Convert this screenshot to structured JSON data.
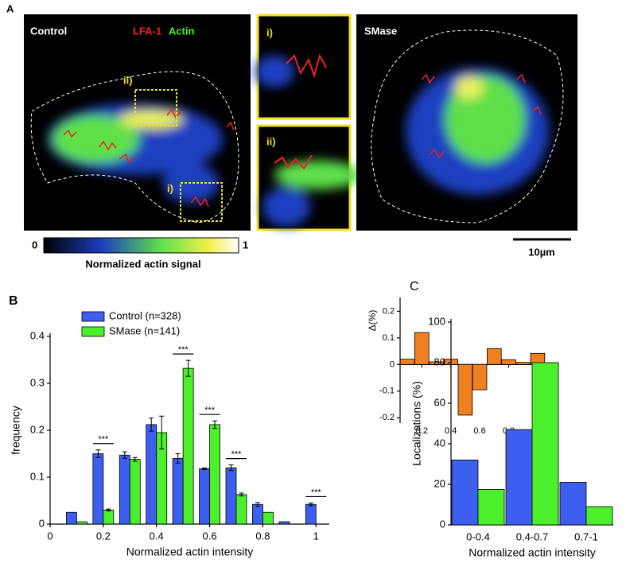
{
  "panel_a": {
    "label": "A",
    "control": "Control",
    "lfa1": "LFA-1",
    "actin": "Actin",
    "inset_i": "i)",
    "inset_ii": "ii)",
    "roi_i": "i)",
    "roi_ii": "ii)",
    "smase": "SMase",
    "colorbar_min": 0,
    "colorbar_max": 1,
    "colorbar_label": "Normalized actin signal",
    "scalebar": "10µm"
  },
  "chart_data": [
    {
      "type": "bar",
      "panel_label": "B",
      "x": [
        0.1,
        0.2,
        0.3,
        0.4,
        0.5,
        0.6,
        0.7,
        0.8,
        0.9,
        1.0
      ],
      "series": [
        {
          "name": "Control (n=328)",
          "color": "#3c5ff0",
          "values": [
            0.025,
            0.15,
            0.147,
            0.212,
            0.14,
            0.118,
            0.12,
            0.042,
            0.005,
            0.042
          ],
          "errors": [
            0,
            0.008,
            0.007,
            0.014,
            0.01,
            0.002,
            0.006,
            0.004,
            0,
            0.003
          ]
        },
        {
          "name": "SMase (n=141)",
          "color": "#4cf02a",
          "values": [
            0.005,
            0.03,
            0.138,
            0.195,
            0.332,
            0.212,
            0.063,
            0.025,
            0,
            0
          ],
          "errors": [
            0,
            0.002,
            0.004,
            0.035,
            0.017,
            0.008,
            0.003,
            0,
            0,
            0
          ]
        }
      ],
      "xlim": [
        0,
        1.05
      ],
      "ylim": [
        0,
        0.4
      ],
      "xticks": [
        0,
        0.2,
        0.4,
        0.6,
        0.8,
        1
      ],
      "yticks": [
        0,
        0.1,
        0.2,
        0.3,
        0.4
      ],
      "x_label": "Normalized actin intensity",
      "y_label": "frequency",
      "legend": "upper left",
      "annotations": [
        {
          "x": 0.2,
          "text": "***"
        },
        {
          "x": 0.5,
          "text": "***"
        },
        {
          "x": 0.6,
          "text": "***"
        },
        {
          "x": 0.7,
          "text": "***"
        },
        {
          "x": 1.0,
          "text": "***"
        }
      ]
    },
    {
      "type": "bar",
      "x": [
        0.1,
        0.2,
        0.3,
        0.4,
        0.5,
        0.6,
        0.7,
        0.8,
        0.9,
        1.0
      ],
      "values": [
        0.02,
        0.12,
        0.01,
        0.02,
        -0.19,
        -0.095,
        0.06,
        0.018,
        0.008,
        0.042
      ],
      "color": "#f07f1f",
      "xlim": [
        0.05,
        1.05
      ],
      "ylim": [
        -0.22,
        0.24
      ],
      "xticks": [
        0.2,
        0.4,
        0.6,
        0.8,
        1
      ],
      "yticks": [
        -0.2,
        -0.1,
        0,
        0.1,
        0.2
      ],
      "y_label": "Δ(%)"
    },
    {
      "type": "bar",
      "panel_label": "C",
      "categories": [
        "0-0.4",
        "0.4-0.7",
        "0.7-1"
      ],
      "series": [
        {
          "color": "#3c5ff0",
          "values": [
            32,
            47,
            21
          ]
        },
        {
          "color": "#4cf02a",
          "values": [
            17.5,
            80,
            9
          ]
        }
      ],
      "ylim": [
        0,
        100
      ],
      "yticks": [
        0,
        20,
        40,
        60,
        80,
        100
      ],
      "x_label": "Normalized actin intensity",
      "y_label": "Localizations (%)"
    }
  ]
}
